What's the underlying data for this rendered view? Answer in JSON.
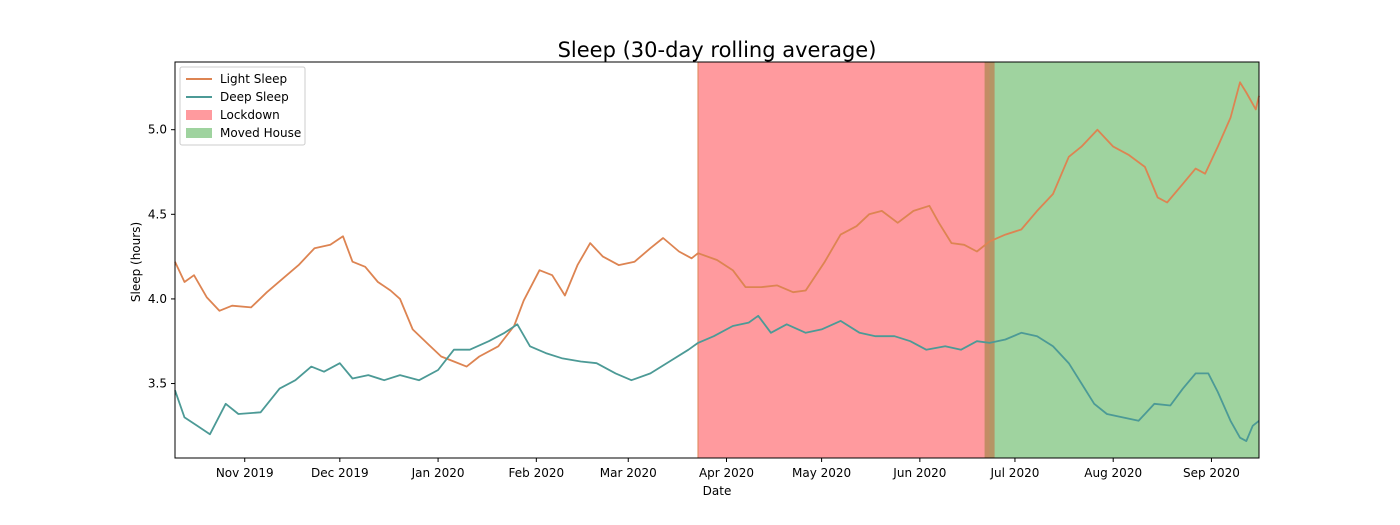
{
  "chart_data": {
    "type": "line",
    "title": "Sleep (30-day rolling average)",
    "xlabel": "Date",
    "ylabel": "Sleep (hours)",
    "xlim": [
      "2019-10-10",
      "2020-09-16"
    ],
    "ylim": [
      3.06,
      5.4
    ],
    "yticks": [
      3.5,
      4.0,
      4.5,
      5.0
    ],
    "ytick_labels": [
      "3.5",
      "4.0",
      "4.5",
      "5.0"
    ],
    "xticks": [
      {
        "date": "2019-11-01",
        "label": "Nov 2019"
      },
      {
        "date": "2019-12-01",
        "label": "Dec 2019"
      },
      {
        "date": "2020-01-01",
        "label": "Jan 2020"
      },
      {
        "date": "2020-02-01",
        "label": "Feb 2020"
      },
      {
        "date": "2020-03-01",
        "label": "Mar 2020"
      },
      {
        "date": "2020-04-01",
        "label": "Apr 2020"
      },
      {
        "date": "2020-05-01",
        "label": "May 2020"
      },
      {
        "date": "2020-06-01",
        "label": "Jun 2020"
      },
      {
        "date": "2020-07-01",
        "label": "Jul 2020"
      },
      {
        "date": "2020-08-01",
        "label": "Aug 2020"
      },
      {
        "date": "2020-09-01",
        "label": "Sep 2020"
      }
    ],
    "legend_position": "upper-left",
    "spans": [
      {
        "name": "Lockdown",
        "start": "2020-03-23",
        "end": "2020-06-23",
        "color": "#ff9a9e"
      },
      {
        "name": "Moved House",
        "start": "2020-06-23",
        "end": "2020-09-16",
        "color": "#9fd39f"
      }
    ],
    "series": [
      {
        "name": "Light Sleep",
        "color": "#dd8452",
        "points": [
          [
            "2019-10-10",
            4.22
          ],
          [
            "2019-10-13",
            4.1
          ],
          [
            "2019-10-16",
            4.14
          ],
          [
            "2019-10-20",
            4.01
          ],
          [
            "2019-10-24",
            3.93
          ],
          [
            "2019-10-28",
            3.96
          ],
          [
            "2019-11-03",
            3.95
          ],
          [
            "2019-11-08",
            4.04
          ],
          [
            "2019-11-13",
            4.12
          ],
          [
            "2019-11-18",
            4.2
          ],
          [
            "2019-11-23",
            4.3
          ],
          [
            "2019-11-28",
            4.32
          ],
          [
            "2019-12-02",
            4.37
          ],
          [
            "2019-12-05",
            4.22
          ],
          [
            "2019-12-09",
            4.19
          ],
          [
            "2019-12-13",
            4.1
          ],
          [
            "2019-12-17",
            4.05
          ],
          [
            "2019-12-20",
            4.0
          ],
          [
            "2019-12-24",
            3.82
          ],
          [
            "2019-12-29",
            3.73
          ],
          [
            "2020-01-02",
            3.66
          ],
          [
            "2020-01-06",
            3.63
          ],
          [
            "2020-01-10",
            3.6
          ],
          [
            "2020-01-14",
            3.66
          ],
          [
            "2020-01-20",
            3.72
          ],
          [
            "2020-01-25",
            3.84
          ],
          [
            "2020-01-28",
            3.99
          ],
          [
            "2020-02-02",
            4.17
          ],
          [
            "2020-02-06",
            4.14
          ],
          [
            "2020-02-10",
            4.02
          ],
          [
            "2020-02-14",
            4.2
          ],
          [
            "2020-02-18",
            4.33
          ],
          [
            "2020-02-22",
            4.25
          ],
          [
            "2020-02-27",
            4.2
          ],
          [
            "2020-03-03",
            4.22
          ],
          [
            "2020-03-08",
            4.3
          ],
          [
            "2020-03-12",
            4.36
          ],
          [
            "2020-03-17",
            4.28
          ],
          [
            "2020-03-21",
            4.24
          ],
          [
            "2020-03-23",
            4.27
          ],
          [
            "2020-03-29",
            4.23
          ],
          [
            "2020-04-03",
            4.17
          ],
          [
            "2020-04-07",
            4.07
          ],
          [
            "2020-04-12",
            4.07
          ],
          [
            "2020-04-17",
            4.08
          ],
          [
            "2020-04-22",
            4.04
          ],
          [
            "2020-04-26",
            4.05
          ],
          [
            "2020-05-02",
            4.22
          ],
          [
            "2020-05-07",
            4.38
          ],
          [
            "2020-05-12",
            4.43
          ],
          [
            "2020-05-16",
            4.5
          ],
          [
            "2020-05-20",
            4.52
          ],
          [
            "2020-05-25",
            4.45
          ],
          [
            "2020-05-30",
            4.52
          ],
          [
            "2020-06-04",
            4.55
          ],
          [
            "2020-06-07",
            4.45
          ],
          [
            "2020-06-11",
            4.33
          ],
          [
            "2020-06-15",
            4.32
          ],
          [
            "2020-06-19",
            4.28
          ],
          [
            "2020-06-23",
            4.34
          ],
          [
            "2020-06-28",
            4.38
          ],
          [
            "2020-07-03",
            4.41
          ],
          [
            "2020-07-08",
            4.52
          ],
          [
            "2020-07-13",
            4.62
          ],
          [
            "2020-07-18",
            4.84
          ],
          [
            "2020-07-22",
            4.9
          ],
          [
            "2020-07-27",
            5.0
          ],
          [
            "2020-08-01",
            4.9
          ],
          [
            "2020-08-06",
            4.85
          ],
          [
            "2020-08-11",
            4.78
          ],
          [
            "2020-08-15",
            4.6
          ],
          [
            "2020-08-18",
            4.57
          ],
          [
            "2020-08-23",
            4.68
          ],
          [
            "2020-08-27",
            4.77
          ],
          [
            "2020-08-30",
            4.74
          ],
          [
            "2020-09-03",
            4.9
          ],
          [
            "2020-09-07",
            5.07
          ],
          [
            "2020-09-10",
            5.28
          ],
          [
            "2020-09-12",
            5.22
          ],
          [
            "2020-09-15",
            5.12
          ],
          [
            "2020-09-16",
            5.2
          ]
        ]
      },
      {
        "name": "Deep Sleep",
        "color": "#4c9a96",
        "points": [
          [
            "2019-10-10",
            3.46
          ],
          [
            "2019-10-13",
            3.3
          ],
          [
            "2019-10-17",
            3.25
          ],
          [
            "2019-10-21",
            3.2
          ],
          [
            "2019-10-26",
            3.38
          ],
          [
            "2019-10-30",
            3.32
          ],
          [
            "2019-11-06",
            3.33
          ],
          [
            "2019-11-12",
            3.47
          ],
          [
            "2019-11-17",
            3.52
          ],
          [
            "2019-11-22",
            3.6
          ],
          [
            "2019-11-26",
            3.57
          ],
          [
            "2019-12-01",
            3.62
          ],
          [
            "2019-12-05",
            3.53
          ],
          [
            "2019-12-10",
            3.55
          ],
          [
            "2019-12-15",
            3.52
          ],
          [
            "2019-12-20",
            3.55
          ],
          [
            "2019-12-26",
            3.52
          ],
          [
            "2020-01-01",
            3.58
          ],
          [
            "2020-01-06",
            3.7
          ],
          [
            "2020-01-11",
            3.7
          ],
          [
            "2020-01-17",
            3.75
          ],
          [
            "2020-01-22",
            3.8
          ],
          [
            "2020-01-26",
            3.85
          ],
          [
            "2020-01-30",
            3.72
          ],
          [
            "2020-02-04",
            3.68
          ],
          [
            "2020-02-09",
            3.65
          ],
          [
            "2020-02-15",
            3.63
          ],
          [
            "2020-02-20",
            3.62
          ],
          [
            "2020-02-26",
            3.56
          ],
          [
            "2020-03-02",
            3.52
          ],
          [
            "2020-03-08",
            3.56
          ],
          [
            "2020-03-14",
            3.63
          ],
          [
            "2020-03-20",
            3.7
          ],
          [
            "2020-03-23",
            3.74
          ],
          [
            "2020-03-28",
            3.78
          ],
          [
            "2020-04-03",
            3.84
          ],
          [
            "2020-04-08",
            3.86
          ],
          [
            "2020-04-11",
            3.9
          ],
          [
            "2020-04-15",
            3.8
          ],
          [
            "2020-04-20",
            3.85
          ],
          [
            "2020-04-26",
            3.8
          ],
          [
            "2020-05-01",
            3.82
          ],
          [
            "2020-05-07",
            3.87
          ],
          [
            "2020-05-13",
            3.8
          ],
          [
            "2020-05-18",
            3.78
          ],
          [
            "2020-05-24",
            3.78
          ],
          [
            "2020-05-29",
            3.75
          ],
          [
            "2020-06-03",
            3.7
          ],
          [
            "2020-06-09",
            3.72
          ],
          [
            "2020-06-14",
            3.7
          ],
          [
            "2020-06-19",
            3.75
          ],
          [
            "2020-06-23",
            3.74
          ],
          [
            "2020-06-28",
            3.76
          ],
          [
            "2020-07-03",
            3.8
          ],
          [
            "2020-07-08",
            3.78
          ],
          [
            "2020-07-13",
            3.72
          ],
          [
            "2020-07-18",
            3.62
          ],
          [
            "2020-07-22",
            3.5
          ],
          [
            "2020-07-26",
            3.38
          ],
          [
            "2020-07-30",
            3.32
          ],
          [
            "2020-08-04",
            3.3
          ],
          [
            "2020-08-09",
            3.28
          ],
          [
            "2020-08-14",
            3.38
          ],
          [
            "2020-08-19",
            3.37
          ],
          [
            "2020-08-23",
            3.47
          ],
          [
            "2020-08-27",
            3.56
          ],
          [
            "2020-08-31",
            3.56
          ],
          [
            "2020-09-03",
            3.45
          ],
          [
            "2020-09-07",
            3.28
          ],
          [
            "2020-09-10",
            3.18
          ],
          [
            "2020-09-12",
            3.16
          ],
          [
            "2020-09-14",
            3.25
          ],
          [
            "2020-09-16",
            3.28
          ]
        ]
      }
    ]
  }
}
